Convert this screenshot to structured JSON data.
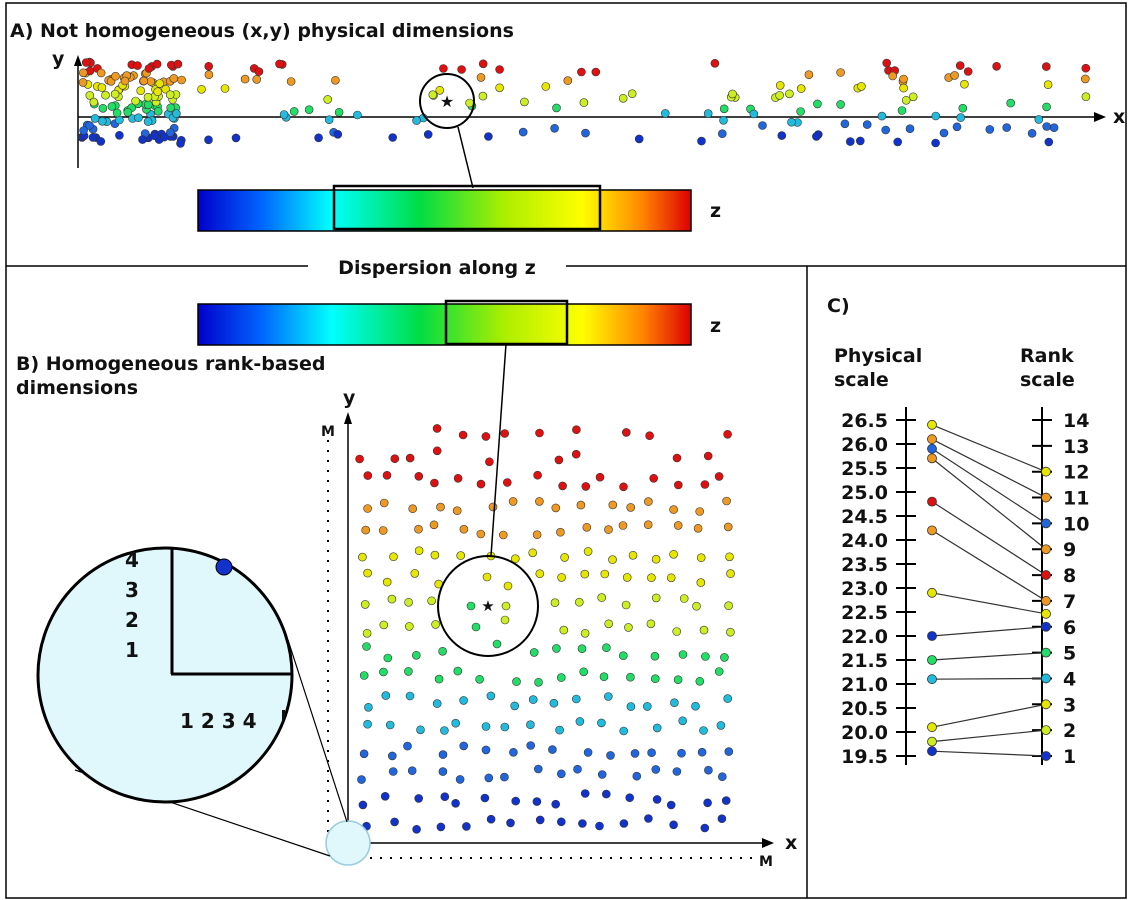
{
  "panel_a": {
    "title": "A) Not homogeneous (x,y) physical dimensions",
    "x_label": "x",
    "y_label": "y",
    "z_label": "z"
  },
  "divider_label": "Dispersion along z",
  "panel_b": {
    "title_line1": "B) Homogeneous rank-based",
    "title_line2": "dimensions",
    "x_label": "x",
    "y_label": "y",
    "z_label": "z",
    "m_x": "M",
    "m_y": "M",
    "zoom_y_ticks": [
      "4",
      "3",
      "2",
      "1"
    ],
    "zoom_x_ticks": "1 2 3 4"
  },
  "panel_c": {
    "title": "C)",
    "left_header_line1": "Physical",
    "left_header_line2": "scale",
    "right_header_line1": "Rank",
    "right_header_line2": "scale",
    "physical_ticks": [
      "26.5",
      "26.0",
      "25.5",
      "25.0",
      "24.5",
      "24.0",
      "23.5",
      "23.0",
      "22.5",
      "22.0",
      "21.5",
      "21.0",
      "20.5",
      "20.0",
      "19.5"
    ],
    "rank_ticks": [
      "14",
      "13",
      "12",
      "11",
      "10",
      "9",
      "8",
      "7",
      "6",
      "5",
      "4",
      "3",
      "2",
      "1"
    ],
    "mappings": [
      {
        "physical": 26.4,
        "rank": 12,
        "color": "#e6e600"
      },
      {
        "physical": 26.1,
        "rank": 11,
        "color": "#ee9922"
      },
      {
        "physical": 25.9,
        "rank": 10,
        "color": "#2266dd"
      },
      {
        "physical": 25.7,
        "rank": 9,
        "color": "#ee9922"
      },
      {
        "physical": 24.8,
        "rank": 8,
        "color": "#dd1111"
      },
      {
        "physical": 24.2,
        "rank": 7,
        "color": "#ee9922"
      },
      {
        "physical": 22.9,
        "rank": 6.5,
        "color": "#e6e600"
      },
      {
        "physical": 22.0,
        "rank": 6,
        "color": "#1133cc"
      },
      {
        "physical": 21.5,
        "rank": 5,
        "color": "#22dd66"
      },
      {
        "physical": 21.1,
        "rank": 4,
        "color": "#22bbdd"
      },
      {
        "physical": 20.1,
        "rank": 3,
        "color": "#e6e600"
      },
      {
        "physical": 19.8,
        "rank": 2,
        "color": "#ccee22"
      },
      {
        "physical": 19.6,
        "rank": 1,
        "color": "#1133cc"
      }
    ]
  },
  "colors": {
    "red": "#dd1111",
    "orange": "#ee9922",
    "yellow": "#e6e600",
    "green": "#22dd66",
    "cyan": "#22bbdd",
    "blue": "#1133cc",
    "zoom_fill": "#e0f7fc"
  }
}
